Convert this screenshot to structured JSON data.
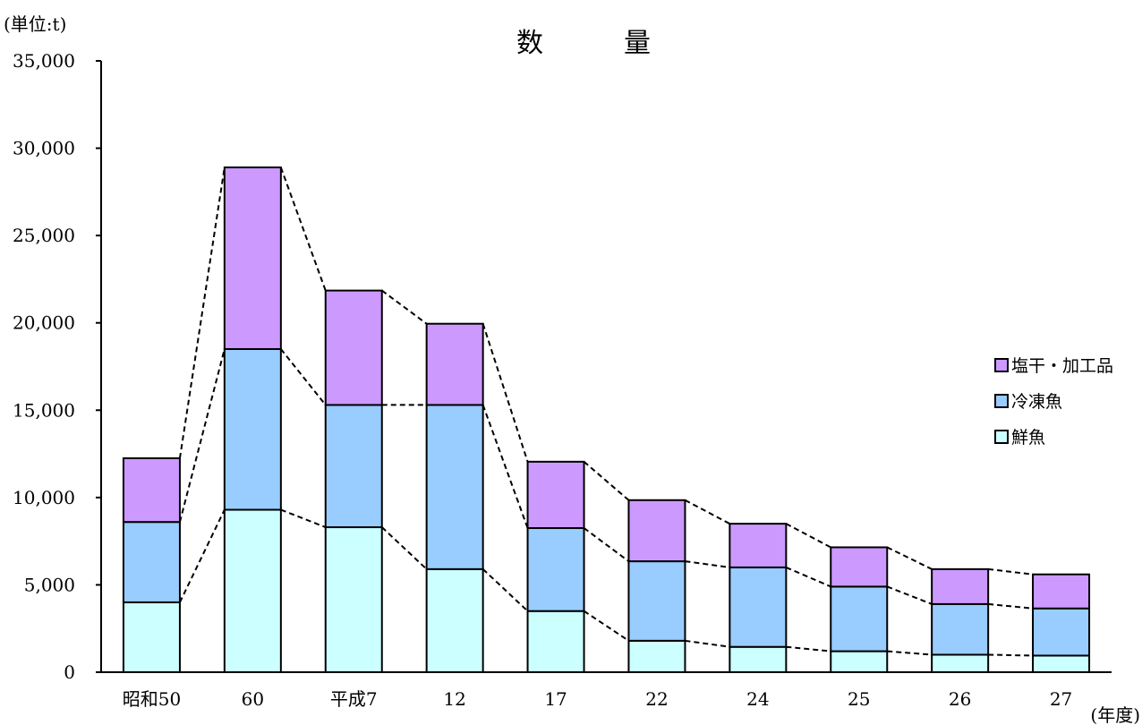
{
  "chart_data": {
    "type": "bar",
    "stacked": true,
    "title": "数　　　量",
    "unit_label": "(単位:t)",
    "x_unit_label": "(年度)",
    "categories": [
      "昭和50",
      "60",
      "平成7",
      "12",
      "17",
      "22",
      "24",
      "25",
      "26",
      "27"
    ],
    "y_ticks": [
      "0",
      "5,000",
      "10,000",
      "15,000",
      "20,000",
      "25,000",
      "30,000",
      "35,000"
    ],
    "ylim": [
      0,
      35000
    ],
    "grid": false,
    "legend_position": "right",
    "connector_lines": "dashed",
    "series": [
      {
        "name": "鮮魚",
        "color": "#ccffff",
        "values": [
          4000,
          9300,
          8300,
          5900,
          3500,
          1800,
          1450,
          1200,
          1000,
          950
        ]
      },
      {
        "name": "冷凍魚",
        "color": "#99ccff",
        "values": [
          4600,
          9200,
          7000,
          9400,
          4750,
          4550,
          4550,
          3700,
          2900,
          2700
        ]
      },
      {
        "name": "塩干・加工品",
        "color": "#cc99ff",
        "values": [
          3650,
          10400,
          6550,
          4650,
          3800,
          3500,
          2500,
          2250,
          2000,
          1950
        ]
      }
    ]
  }
}
